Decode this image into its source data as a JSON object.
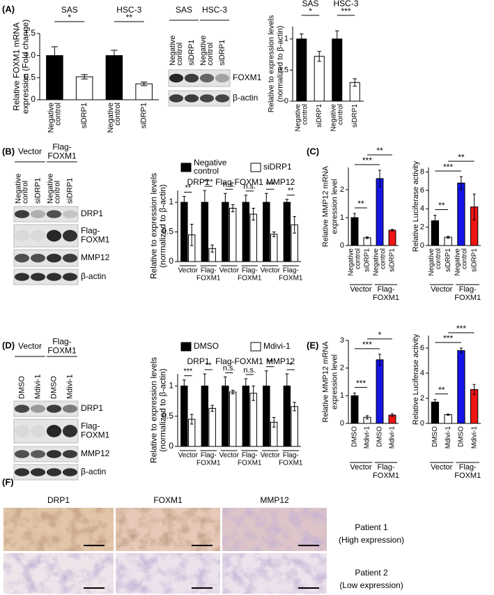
{
  "panels": [
    "(A)",
    "(B)",
    "(C)",
    "(D)",
    "(E)",
    "(F)"
  ],
  "chart_data": [
    {
      "type": "bar",
      "ylabel": [
        "Relative FOXM1 mRNA",
        "expression (Fold change)"
      ],
      "groups": [
        "SAS",
        "HSC-3"
      ],
      "categories": [
        [
          "Negative",
          "control"
        ],
        "siDRP1",
        [
          "Negative",
          "control"
        ],
        "siDRP1"
      ],
      "values": [
        1.0,
        0.52,
        1.0,
        0.36
      ],
      "errors": [
        0.2,
        0.05,
        0.12,
        0.04
      ],
      "colors": [
        "#000000",
        "#ffffff",
        "#000000",
        "#ffffff"
      ],
      "ylim": [
        0,
        1.5
      ],
      "yticks": [
        0,
        0.5,
        {
          "value": 1,
          "label": "1.0"
        },
        1.5
      ],
      "brackets": [
        {
          "label": "*",
          "between": [
            0,
            1
          ]
        },
        {
          "label": "**",
          "between": [
            2,
            3
          ]
        }
      ]
    },
    {
      "type": "bar",
      "ylabel": [
        "Relative to expression levels",
        "(normalized to β-actin)"
      ],
      "groups": [
        "SAS",
        "HSC-3"
      ],
      "categories": [
        [
          "Negative",
          "control"
        ],
        "siDRP1",
        [
          "Negative",
          "control"
        ],
        "siDRP1"
      ],
      "values": [
        1.0,
        0.72,
        1.0,
        0.3
      ],
      "errors": [
        0.08,
        0.08,
        0.13,
        0.06
      ],
      "colors": [
        "#000000",
        "#ffffff",
        "#000000",
        "#ffffff"
      ],
      "ylim": [
        0,
        1.2
      ],
      "yticks": [
        0,
        0.5,
        1
      ],
      "brackets": [
        {
          "label": "*",
          "between": [
            0,
            1
          ]
        },
        {
          "label": "***",
          "between": [
            2,
            3
          ]
        }
      ]
    },
    {
      "type": "grouped_bar",
      "ylabel": [
        "Relative to expression levels",
        "(normalized to β-actin)"
      ],
      "groups": [
        "DRP1",
        "Flag-FOXM1",
        "MMP12"
      ],
      "categories": [
        "Vector",
        [
          "Flag-",
          "FOXM1"
        ],
        "Vector",
        [
          "Flag-",
          "FOXM1"
        ],
        "Vector",
        [
          "Flag-",
          "FOXM1"
        ]
      ],
      "series": [
        {
          "name": [
            "Negative",
            "control"
          ],
          "color": "#000000",
          "values": [
            1,
            1,
            1,
            1,
            1,
            1
          ],
          "errors": [
            0.1,
            0.2,
            0.15,
            0.12,
            0.15,
            0.05
          ]
        },
        {
          "name": "siDRP1",
          "color": "#ffffff",
          "values": [
            0.45,
            0.22,
            0.9,
            0.8,
            0.46,
            0.62
          ],
          "errors": [
            0.18,
            0.06,
            0.06,
            0.1,
            0.04,
            0.14
          ]
        }
      ],
      "ylim": [
        0,
        1.2
      ],
      "yticks": [
        0,
        0.5,
        1
      ],
      "significance": [
        "**",
        "***",
        "n.s.",
        "n.s.",
        "***",
        "**"
      ]
    },
    {
      "type": "bar",
      "ylabel": [
        "Relative MMP12 mRNA",
        "expression level"
      ],
      "groups": [
        "Vector",
        [
          "Flag-",
          "FOXM1"
        ]
      ],
      "categories": [
        [
          "Negative",
          "control"
        ],
        "siDRP1",
        [
          "Negative",
          "control"
        ],
        "siDRP1"
      ],
      "values": [
        1.0,
        0.28,
        2.4,
        0.55
      ],
      "errors": [
        0.15,
        0.03,
        0.3,
        0.03
      ],
      "colors": [
        "#000000",
        "#ffffff",
        "#1414e6",
        "#f01414"
      ],
      "ylim": [
        0,
        2.8
      ],
      "yticks": [
        0,
        1,
        2
      ],
      "brackets": [
        {
          "label": "**",
          "between": [
            0,
            1
          ]
        },
        {
          "label": "***",
          "between": [
            0,
            2
          ]
        },
        {
          "label": "**",
          "between": [
            1,
            3
          ]
        }
      ]
    },
    {
      "type": "bar",
      "ylabel": "Relative Luciferase activity",
      "groups": [
        "Vector",
        [
          "Flag-",
          "FOXM1"
        ]
      ],
      "categories": [
        [
          "Negative",
          "control"
        ],
        "siDRP1",
        [
          "Negative",
          "control"
        ],
        "siDRP1"
      ],
      "values": [
        2.7,
        0.9,
        6.8,
        4.2
      ],
      "errors": [
        0.6,
        0.1,
        0.7,
        1.4
      ],
      "colors": [
        "#000000",
        "#ffffff",
        "#1414e6",
        "#f01414"
      ],
      "ylim": [
        0,
        8.5
      ],
      "yticks": [
        0,
        2,
        4,
        6,
        8
      ],
      "brackets": [
        {
          "label": "**",
          "between": [
            0,
            1
          ]
        },
        {
          "label": "***",
          "between": [
            0,
            2
          ]
        },
        {
          "label": "**",
          "between": [
            1,
            3
          ]
        }
      ]
    },
    {
      "type": "grouped_bar",
      "ylabel": [
        "Relative to expression levels",
        "(normalized to β-actin)"
      ],
      "groups": [
        "DRP1",
        "Flag-FOXM1",
        "MMP12"
      ],
      "categories": [
        "Vector",
        [
          "Flag-",
          "FOXM1"
        ],
        "Vector",
        [
          "Flag-",
          "FOXM1"
        ],
        "Vector",
        [
          "Flag-",
          "FOXM1"
        ]
      ],
      "series": [
        {
          "name": "DMSO",
          "color": "#000000",
          "values": [
            1,
            1,
            1,
            1,
            1,
            1
          ],
          "errors": [
            0.1,
            0.2,
            0.15,
            0.12,
            0.25,
            0.2
          ]
        },
        {
          "name": "Mdivi-1",
          "color": "#ffffff",
          "values": [
            0.45,
            0.63,
            0.9,
            0.88,
            0.4,
            0.66
          ],
          "errors": [
            0.08,
            0.05,
            0.03,
            0.12,
            0.08,
            0.07
          ]
        }
      ],
      "ylim": [
        0,
        1.2
      ],
      "yticks": [
        0,
        0.5,
        1
      ],
      "significance": [
        "***",
        "**",
        "n.s.",
        "n.s.",
        "**",
        "*"
      ]
    },
    {
      "type": "bar",
      "ylabel": [
        "Relative MMP12 mRNA",
        "expression level"
      ],
      "groups": [
        "Vector",
        [
          "Flag-",
          "FOXM1"
        ]
      ],
      "categories": [
        "DMSO",
        "Mdivi-1",
        "DMSO",
        "Mdivi-1"
      ],
      "values": [
        1.0,
        0.22,
        2.3,
        0.3
      ],
      "errors": [
        0.1,
        0.06,
        0.2,
        0.05
      ],
      "colors": [
        "#000000",
        "#ffffff",
        "#1414e6",
        "#f01414"
      ],
      "ylim": [
        0,
        3
      ],
      "yticks": [
        0,
        1,
        2,
        3
      ],
      "brackets": [
        {
          "label": "***",
          "between": [
            0,
            1
          ]
        },
        {
          "label": "***",
          "between": [
            0,
            2
          ]
        },
        {
          "label": "*",
          "between": [
            1,
            3
          ]
        }
      ]
    },
    {
      "type": "bar",
      "ylabel": "Relative Luciferase activity",
      "groups": [
        "Vector",
        [
          "Flag-",
          "FOXM1"
        ]
      ],
      "categories": [
        "DMSO",
        "Mdivi-1",
        "DMSO",
        "Mdivi-1"
      ],
      "values": [
        1.7,
        0.7,
        5.8,
        2.7
      ],
      "errors": [
        0.2,
        0.05,
        0.2,
        0.4
      ],
      "colors": [
        "#000000",
        "#ffffff",
        "#1414e6",
        "#f01414"
      ],
      "ylim": [
        0,
        7
      ],
      "yticks": [
        0,
        2,
        4,
        6
      ],
      "brackets": [
        {
          "label": "**",
          "between": [
            0,
            1
          ]
        },
        {
          "label": "***",
          "between": [
            0,
            2
          ]
        },
        {
          "label": "***",
          "between": [
            1,
            3
          ]
        }
      ]
    }
  ],
  "blots": [
    {
      "groups": [
        "SAS",
        "HSC-3"
      ],
      "lanes": [
        [
          "Negative",
          "control"
        ],
        "siDRP1",
        [
          "Negative",
          "control"
        ],
        "siDRP1"
      ],
      "bands": [
        "FOXM1",
        "β-actin"
      ]
    },
    {
      "groups": [
        "Vector",
        [
          "Flag-",
          "FOXM1"
        ]
      ],
      "lanes": [
        [
          "Negative",
          "control"
        ],
        "siDRP1",
        [
          "Negative",
          "control"
        ],
        "siDRP1"
      ],
      "bands": [
        "DRP1",
        [
          "Flag-",
          "FOXM1"
        ],
        "MMP12",
        "β-actin"
      ]
    },
    {
      "groups": [
        "Vector",
        [
          "Flag-",
          "FOXM1"
        ]
      ],
      "lanes": [
        "DMSO",
        "Mdivi-1",
        "DMSO",
        "Mdivi-1"
      ],
      "bands": [
        "DRP1",
        [
          "Flag-",
          "FOXM1"
        ],
        "MMP12",
        "β-actin"
      ]
    }
  ],
  "histology": {
    "columns": [
      "DRP1",
      "FOXM1",
      "MMP12"
    ],
    "rows": [
      [
        "Patient 1",
        "(High expression)"
      ],
      [
        "Patient 2",
        "(Low expression)"
      ]
    ]
  }
}
